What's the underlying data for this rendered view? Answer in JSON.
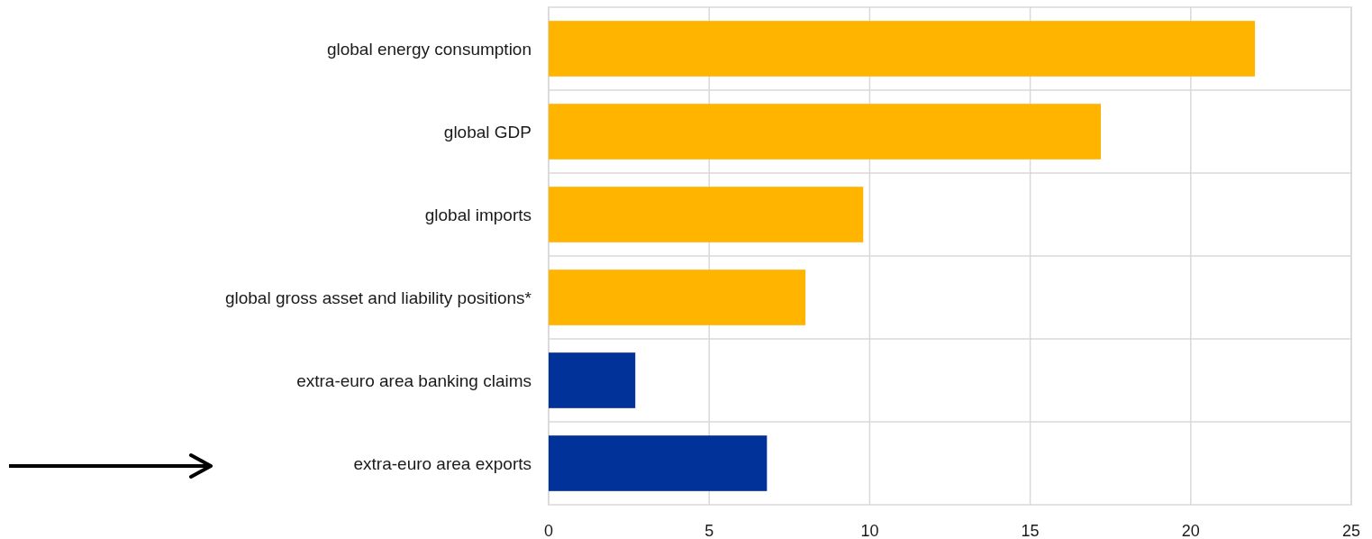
{
  "chart_data": {
    "type": "bar",
    "orientation": "horizontal",
    "categories": [
      "global energy consumption",
      "global GDP",
      "global imports",
      "global gross asset and liability positions*",
      "extra-euro area banking claims",
      "extra-euro area exports"
    ],
    "values": [
      22.0,
      17.2,
      9.8,
      8.0,
      2.7,
      6.8
    ],
    "colors": [
      "#ffb400",
      "#ffb400",
      "#ffb400",
      "#ffb400",
      "#003299",
      "#003299"
    ],
    "xlim": [
      0,
      25
    ],
    "xticks": [
      0,
      5,
      10,
      15,
      20,
      25
    ],
    "grid": true
  }
}
